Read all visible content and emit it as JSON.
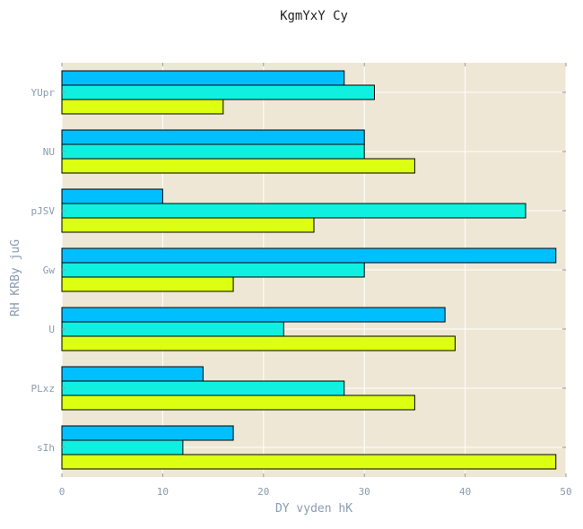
{
  "chart_data": {
    "type": "bar",
    "orientation": "horizontal",
    "title": "KgmYxY Cy",
    "xlabel": "DY vyden hK",
    "ylabel": "RH KRBy  juG",
    "xlim": [
      0,
      50
    ],
    "xticks": [
      "0",
      "10",
      "20",
      "30",
      "40",
      "50"
    ],
    "categories": [
      "YUpr",
      "NU",
      "pJSV",
      "Gw",
      "U",
      "PLxz",
      "sIh"
    ],
    "series": [
      {
        "color": "#00bfff",
        "values": [
          28,
          30,
          10,
          49,
          38,
          14,
          17
        ]
      },
      {
        "color": "#10f0e0",
        "values": [
          31,
          30,
          46,
          30,
          22,
          28,
          12
        ]
      },
      {
        "color": "#ddff11",
        "values": [
          16,
          35,
          25,
          17,
          39,
          35,
          49
        ]
      }
    ],
    "grid": true,
    "background_color": "#efe7d6",
    "grid_color": "#ffffff"
  }
}
